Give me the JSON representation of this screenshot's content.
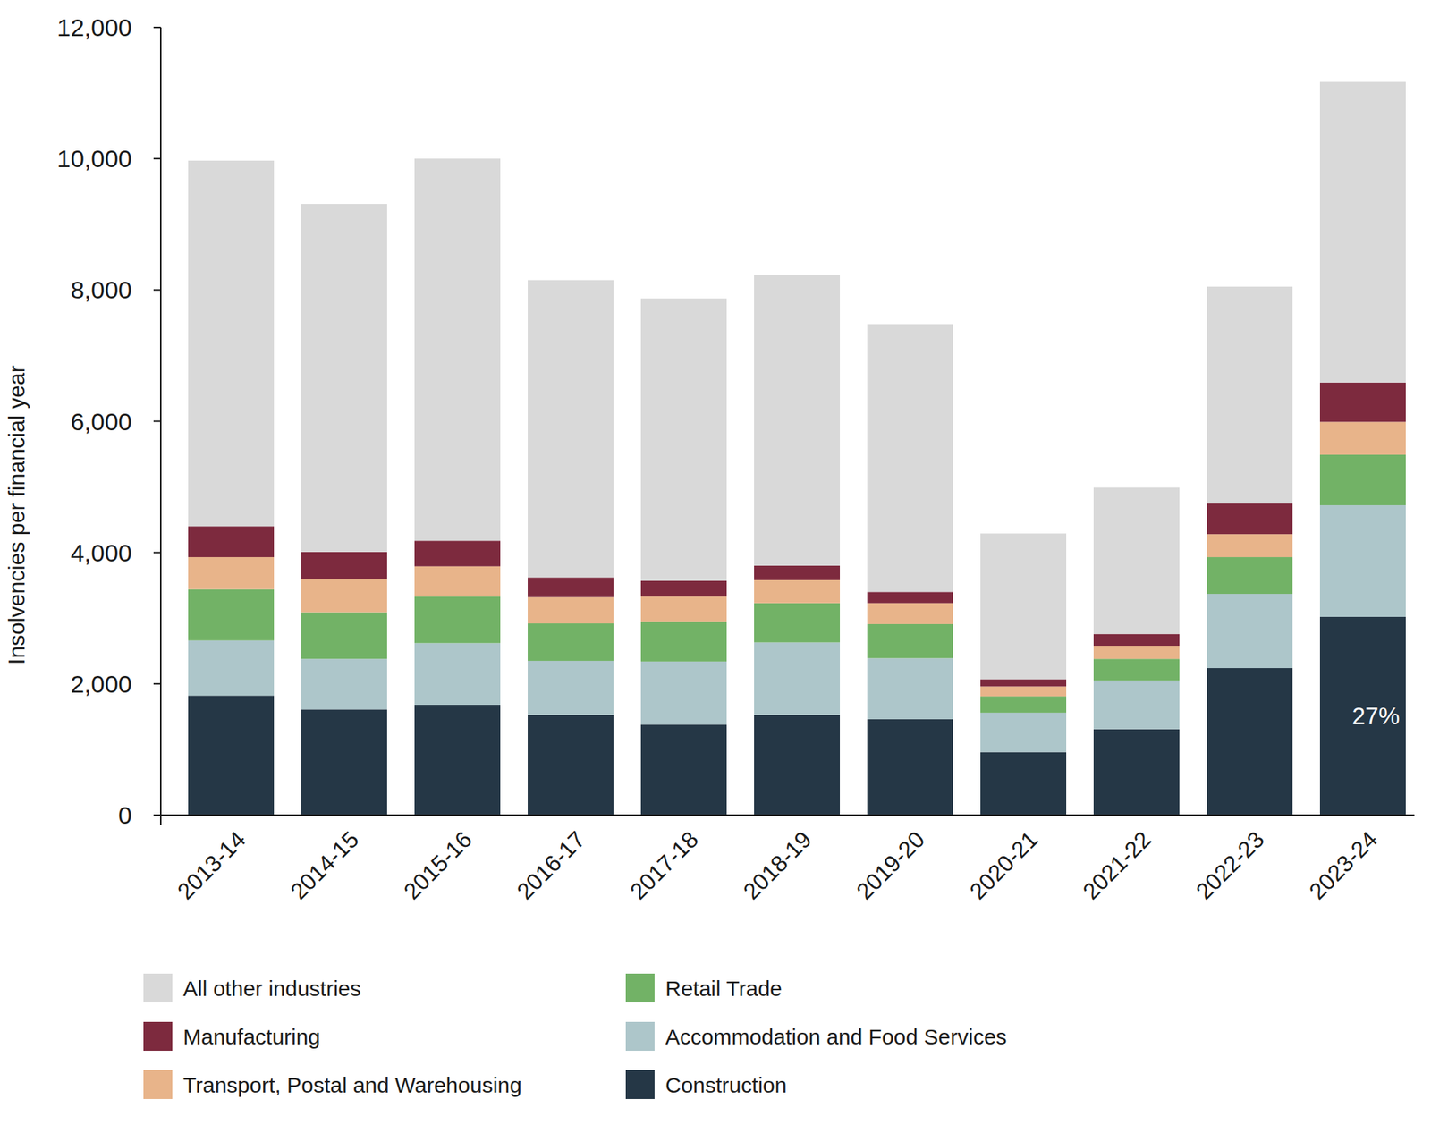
{
  "chart_data": {
    "type": "bar",
    "stacked": true,
    "grid": false,
    "legend": "bottom",
    "y_label": "Insolvencies per financial year",
    "categories": [
      "2013-14",
      "2014-15",
      "2015-16",
      "2016-17",
      "2017-18",
      "2018-19",
      "2019-20",
      "2020-21",
      "2021-22",
      "2022-23",
      "2023-24"
    ],
    "series": [
      {
        "name": "Construction",
        "color": "#253746",
        "values": [
          1820,
          1610,
          1680,
          1530,
          1380,
          1530,
          1460,
          960,
          1310,
          2240,
          3020
        ]
      },
      {
        "name": "Accommodation and Food Services",
        "color": "#adc6ca",
        "values": [
          840,
          770,
          940,
          820,
          960,
          1100,
          930,
          600,
          740,
          1130,
          1700
        ]
      },
      {
        "name": "Retail Trade",
        "color": "#72b266",
        "values": [
          780,
          710,
          710,
          570,
          610,
          600,
          520,
          250,
          330,
          560,
          770
        ]
      },
      {
        "name": "Transport, Postal and Warehousing",
        "color": "#e8b48a",
        "values": [
          490,
          500,
          460,
          400,
          380,
          350,
          320,
          150,
          200,
          350,
          500
        ]
      },
      {
        "name": "Manufacturing",
        "color": "#7d2a3e",
        "values": [
          470,
          420,
          390,
          300,
          240,
          220,
          170,
          110,
          180,
          470,
          600
        ]
      },
      {
        "name": "All other industries",
        "color": "#d9d9d9",
        "values": [
          5570,
          5300,
          5820,
          4530,
          4300,
          4430,
          4080,
          2220,
          2230,
          3300,
          4580
        ]
      }
    ],
    "annotations": [
      "27%"
    ],
    "ylim": [
      0,
      12000
    ],
    "yticks": [
      0,
      {
        "value": 2000,
        "label": "2,000"
      },
      {
        "value": 4000,
        "label": "4,000"
      },
      {
        "value": 6000,
        "label": "6,000"
      },
      {
        "value": 8000,
        "label": "8,000"
      },
      {
        "value": 10000,
        "label": "10,000"
      },
      {
        "value": 12000,
        "label": "12,000"
      }
    ]
  }
}
